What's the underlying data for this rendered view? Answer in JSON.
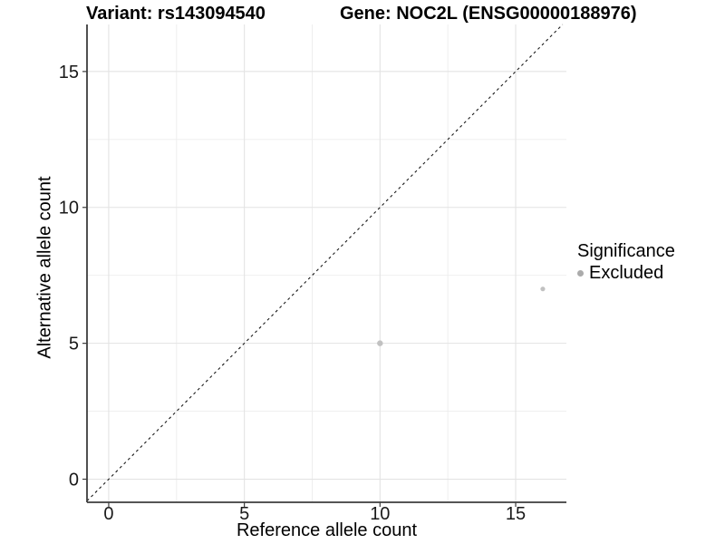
{
  "chart_data": {
    "type": "scatter",
    "title_left": "Variant: rs143094540",
    "title_right": "Gene: NOC2L (ENSG00000188976)",
    "xlabel": "Reference allele count",
    "ylabel": "Alternative allele count",
    "x_axis": {
      "ticks": [
        0,
        5,
        10,
        15
      ],
      "minor_ticks": [
        2.5,
        7.5,
        12.5
      ],
      "range": [
        -0.8,
        16.87
      ]
    },
    "y_axis": {
      "ticks": [
        0,
        5,
        10,
        15
      ],
      "minor_ticks": [
        2.5,
        7.5,
        12.5
      ],
      "range": [
        -0.85,
        16.73
      ]
    },
    "points": [
      {
        "x": 10,
        "y": 5,
        "significance": "Excluded",
        "radius_px": 3.2
      },
      {
        "x": 16,
        "y": 7,
        "significance": "Excluded",
        "radius_px": 2.6
      }
    ],
    "identity_line": {
      "slope": 1,
      "intercept": 0,
      "style": "dashed",
      "color": "#1a1a1a"
    },
    "legend": {
      "title": "Significance",
      "position": "right",
      "items": [
        {
          "label": "Excluded",
          "marker": "circle-icon",
          "color": "#ababab"
        }
      ]
    },
    "colors": {
      "point": "#c1c1c1",
      "grid_major": "#e3e3e3",
      "grid_minor": "#ededed",
      "axis_line": "#3d3d3d",
      "tick_text": "#1a1a1a",
      "background": "#ffffff"
    },
    "grid": true
  }
}
